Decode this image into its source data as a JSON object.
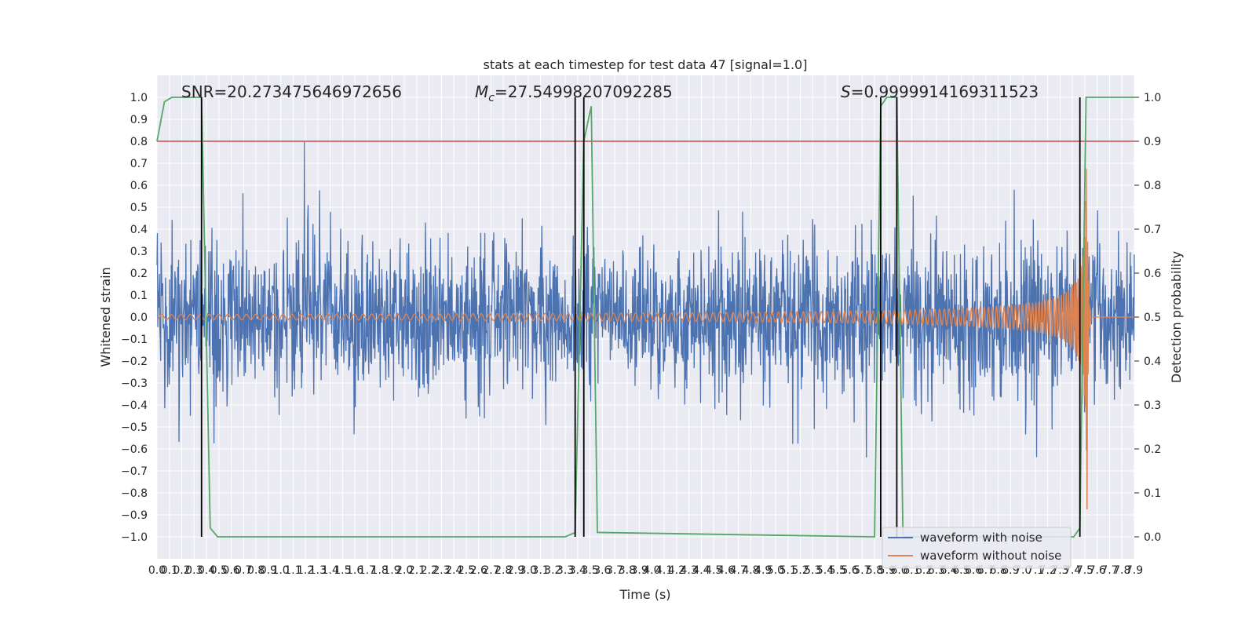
{
  "chart_data": {
    "type": "line",
    "title": "stats at each timestep for test data 47 [signal=1.0]",
    "xlabel": "Time (s)",
    "ylabel": "Whitened strain",
    "y2label": "Detection probability",
    "xlim": [
      0.0,
      7.9
    ],
    "ylim": [
      -1.1,
      1.1
    ],
    "y2lim": [
      -0.05,
      1.05
    ],
    "x_ticks": [
      "0.0",
      "0.1",
      "0.2",
      "0.3",
      "0.4",
      "0.5",
      "0.6",
      "0.7",
      "0.8",
      "0.9",
      "1.0",
      "1.1",
      "1.2",
      "1.3",
      "1.4",
      "1.5",
      "1.6",
      "1.7",
      "1.8",
      "1.9",
      "2.0",
      "2.1",
      "2.2",
      "2.3",
      "2.4",
      "2.5",
      "2.6",
      "2.7",
      "2.8",
      "2.9",
      "3.0",
      "3.1",
      "3.2",
      "3.3",
      "3.4",
      "3.5",
      "3.6",
      "3.7",
      "3.8",
      "3.9",
      "4.0",
      "4.1",
      "4.2",
      "4.3",
      "4.4",
      "4.5",
      "4.6",
      "4.7",
      "4.8",
      "4.9",
      "5.0",
      "5.1",
      "5.2",
      "5.3",
      "5.4",
      "5.5",
      "5.6",
      "5.7",
      "5.8",
      "5.9",
      "6.0",
      "6.1",
      "6.2",
      "6.3",
      "6.4",
      "6.5",
      "6.6",
      "6.7",
      "6.8",
      "6.9",
      "7.0",
      "7.1",
      "7.2",
      "7.3",
      "7.4",
      "7.5",
      "7.6",
      "7.7",
      "7.8",
      "7.9"
    ],
    "y_ticks": [
      "1.0",
      "0.9",
      "0.8",
      "0.7",
      "0.6",
      "0.5",
      "0.4",
      "0.3",
      "0.2",
      "0.1",
      "0.0",
      "−0.1",
      "−0.2",
      "−0.3",
      "−0.4",
      "−0.5",
      "−0.6",
      "−0.7",
      "−0.8",
      "−0.9",
      "−1.0"
    ],
    "y2_ticks": [
      "1.0",
      "0.9",
      "0.8",
      "0.7",
      "0.6",
      "0.5",
      "0.4",
      "0.3",
      "0.2",
      "0.1",
      "0.0"
    ],
    "annotations": {
      "snr": "SNR=20.273475646972656",
      "mc_symbol": "M",
      "mc_sub": "c",
      "mc_value": "=27.54998207092285",
      "s_symbol": "S",
      "s_value": "=0.9999914169311523"
    },
    "legend": {
      "placement": "lower-right",
      "entries": [
        {
          "label": "waveform with noise",
          "color": "#4c72b0"
        },
        {
          "label": "waveform without noise",
          "color": "#dd8452"
        }
      ]
    },
    "threshold_line": {
      "axis": "y2",
      "value": 0.9,
      "color": "#c44e52"
    },
    "vertical_markers_s": [
      0.36,
      3.38,
      3.45,
      5.85,
      5.98,
      7.46
    ],
    "detection_probability": {
      "color": "#55a868",
      "x": [
        0.0,
        0.06,
        0.12,
        0.2,
        0.36,
        0.43,
        0.49,
        3.3,
        3.38,
        3.45,
        3.51,
        3.56,
        5.8,
        5.85,
        5.9,
        5.98,
        6.03,
        7.41,
        7.46,
        7.51,
        7.9
      ],
      "y": [
        0.9,
        0.99,
        1.0,
        1.0,
        1.0,
        0.02,
        0.0,
        0.0,
        0.01,
        0.9,
        0.98,
        0.01,
        0.0,
        0.98,
        1.0,
        1.0,
        0.0,
        0.0,
        0.02,
        1.0,
        1.0
      ]
    },
    "series": [
      {
        "name": "waveform with noise",
        "color": "#4c72b0",
        "description": "noisy whitened strain, amplitude roughly within -0.9 to 0.8"
      },
      {
        "name": "waveform without noise",
        "color": "#dd8452",
        "description": "chirp signal growing to peak near 7.5 s then cutting off"
      }
    ],
    "colors": {
      "background": "#eaeaf2",
      "grid": "#ffffff",
      "marker": "#000000"
    }
  }
}
